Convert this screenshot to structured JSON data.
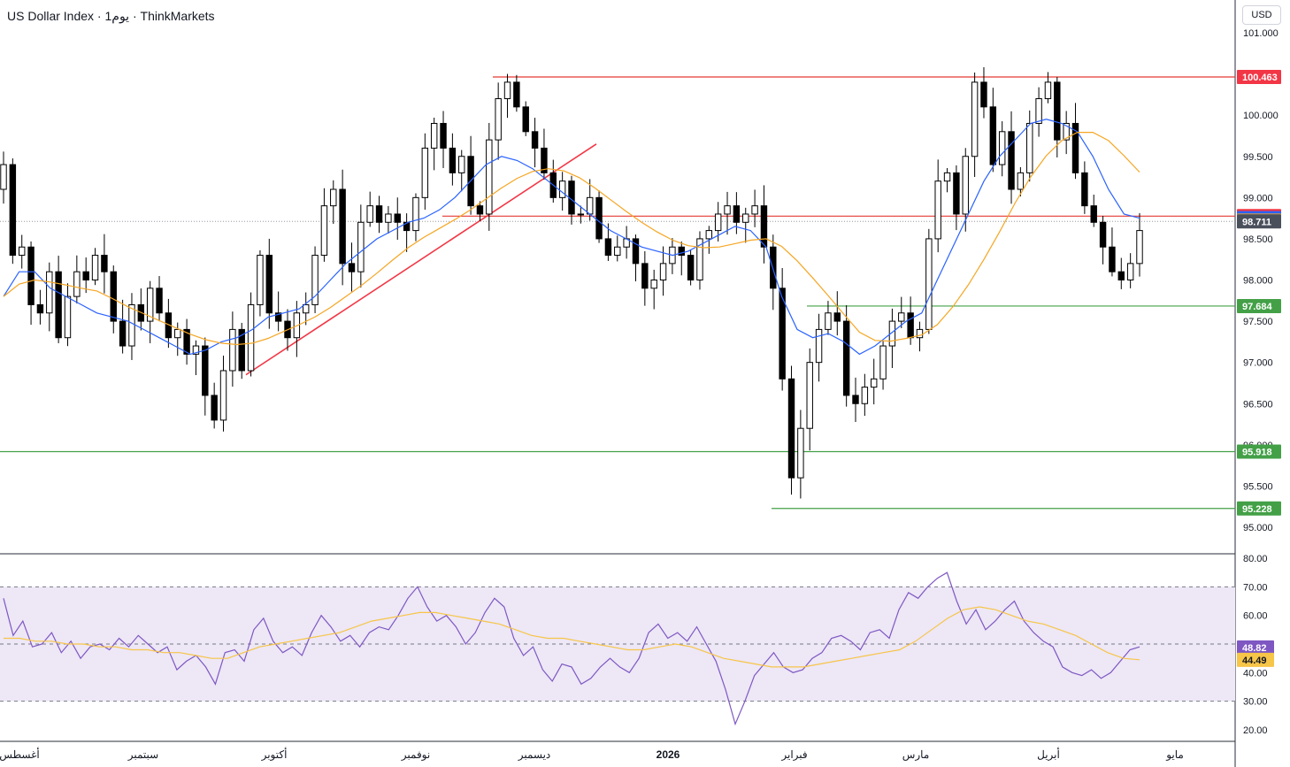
{
  "header": {
    "title": "US Dollar Index · 1يوم · ThinkMarkets",
    "currency": "USD"
  },
  "colors": {
    "up_candle": "#ffffff",
    "down_candle": "#000000",
    "candle_border": "#000000",
    "sma_fast": "#2962ff",
    "sma_slow": "#f5a623",
    "resistance": "#e53935",
    "support": "#43a047",
    "trendline": "#f23645",
    "rsi_line": "#7e57c2",
    "rsi_ma": "#f7c548",
    "rsi_band": "#ede7f6"
  },
  "chart_data": [
    {
      "type": "candlestick",
      "title": "US Dollar Index · 1يوم · ThinkMarkets",
      "ylim": [
        94.8,
        101.35
      ],
      "y_ticks": [
        "95.000",
        "95.500",
        "96.000",
        "96.500",
        "97.000",
        "97.500",
        "98.000",
        "98.500",
        "99.000",
        "99.500",
        "100.000",
        "101.000"
      ],
      "x_labels": [
        "أغسطس",
        "سبتمبر",
        "أكتوبر",
        "نوفمبر",
        "ديسمبر",
        "2026",
        "فبراير",
        "مارس",
        "أبريل",
        "مايو"
      ],
      "price_labels": [
        {
          "value": "100.463",
          "color": "#f23645"
        },
        {
          "value": "98.775",
          "color": "#f23645"
        },
        {
          "value": "98.750",
          "color": "#2962ff"
        },
        {
          "value": "98.720",
          "color": "#f5a623"
        },
        {
          "value": "98.711",
          "color": "#4a4f5c"
        },
        {
          "value": "97.684",
          "color": "#43a047"
        },
        {
          "value": "95.918",
          "color": "#43a047"
        },
        {
          "value": "95.228",
          "color": "#43a047"
        }
      ],
      "horizontal_levels": [
        {
          "value": 100.463,
          "kind": "resistance"
        },
        {
          "value": 98.775,
          "kind": "resistance"
        },
        {
          "value": 97.684,
          "kind": "support"
        },
        {
          "value": 95.918,
          "kind": "support"
        },
        {
          "value": 95.228,
          "kind": "support"
        }
      ],
      "trendline": {
        "from": 96.85,
        "to": 99.65
      },
      "close_series": [
        99.4,
        98.3,
        98.4,
        97.7,
        97.6,
        98.1,
        97.3,
        97.8,
        98.1,
        98.0,
        98.3,
        98.1,
        97.5,
        97.2,
        97.7,
        97.5,
        97.9,
        97.6,
        97.3,
        97.4,
        97.1,
        97.2,
        96.6,
        96.3,
        96.9,
        97.4,
        96.9,
        97.7,
        98.3,
        97.6,
        97.5,
        97.3,
        97.6,
        97.7,
        98.3,
        98.9,
        99.1,
        98.2,
        98.1,
        98.7,
        98.9,
        98.7,
        98.8,
        98.7,
        98.6,
        99.0,
        99.6,
        99.9,
        99.6,
        99.3,
        99.5,
        98.9,
        98.8,
        99.7,
        100.2,
        100.4,
        100.1,
        99.8,
        99.6,
        99.3,
        99.0,
        99.2,
        98.8,
        98.8,
        99.0,
        98.5,
        98.3,
        98.4,
        98.5,
        98.2,
        97.9,
        98.0,
        98.2,
        98.4,
        98.3,
        98.0,
        98.5,
        98.6,
        98.8,
        98.9,
        98.7,
        98.8,
        98.9,
        98.4,
        97.9,
        96.8,
        95.6,
        96.2,
        97.0,
        97.4,
        97.6,
        97.5,
        96.6,
        96.5,
        96.7,
        96.8,
        97.2,
        97.5,
        97.6,
        97.3,
        97.4,
        98.5,
        99.2,
        99.3,
        98.8,
        99.5,
        100.4,
        100.1,
        99.4,
        99.8,
        99.1,
        99.3,
        99.9,
        100.2,
        100.4,
        99.7,
        99.9,
        99.3,
        98.9,
        98.7,
        98.4,
        98.1,
        98.0,
        98.2,
        98.6
      ],
      "sma_fast_series": [
        97.8,
        98.1,
        98.1,
        97.9,
        97.8,
        97.7,
        97.6,
        97.55,
        97.5,
        97.4,
        97.3,
        97.2,
        97.1,
        97.15,
        97.25,
        97.3,
        97.4,
        97.55,
        97.6,
        97.65,
        97.8,
        98.0,
        98.2,
        98.35,
        98.5,
        98.6,
        98.7,
        98.75,
        98.85,
        99.0,
        99.2,
        99.4,
        99.5,
        99.45,
        99.35,
        99.2,
        99.05,
        98.9,
        98.75,
        98.6,
        98.5,
        98.4,
        98.35,
        98.3,
        98.35,
        98.45,
        98.55,
        98.65,
        98.6,
        98.4,
        97.8,
        97.4,
        97.3,
        97.35,
        97.25,
        97.1,
        97.2,
        97.35,
        97.5,
        97.6,
        98.0,
        98.4,
        98.8,
        99.2,
        99.5,
        99.7,
        99.9,
        99.95,
        99.9,
        99.8,
        99.5,
        99.1,
        98.8,
        98.75
      ]
    },
    {
      "type": "line",
      "title": "RSI",
      "ylim": [
        18,
        82
      ],
      "y_ticks": [
        "20.00",
        "30.00",
        "40.00",
        "50.00",
        "60.00",
        "70.00",
        "80.00"
      ],
      "band": [
        30,
        70
      ],
      "mid": 50,
      "value_labels": [
        {
          "value": "48.82",
          "color": "#7e57c2"
        },
        {
          "value": "44.49",
          "color": "#f7c548"
        }
      ],
      "series": [
        {
          "role": "rsi",
          "values": [
            66,
            53,
            58,
            49,
            50,
            54,
            47,
            51,
            45,
            49,
            50,
            48,
            52,
            49,
            53,
            50,
            47,
            49,
            41,
            44,
            46,
            42,
            36,
            47,
            48,
            44,
            55,
            59,
            51,
            47,
            49,
            46,
            54,
            60,
            56,
            51,
            53,
            49,
            54,
            56,
            55,
            60,
            66,
            70,
            63,
            58,
            60,
            56,
            50,
            54,
            61,
            66,
            63,
            52,
            46,
            49,
            41,
            37,
            43,
            42,
            36,
            38,
            42,
            45,
            42,
            40,
            45,
            54,
            57,
            52,
            54,
            51,
            56,
            50,
            44,
            34,
            22,
            30,
            39,
            43,
            47,
            42,
            40,
            41,
            45,
            47,
            52,
            53,
            51,
            48,
            54,
            55,
            52,
            62,
            68,
            66,
            70,
            73,
            75,
            65,
            57,
            62,
            55,
            58,
            62,
            65,
            58,
            54,
            51,
            49,
            42,
            40,
            39,
            41,
            38,
            40,
            44,
            48,
            49
          ]
        },
        {
          "role": "rsi_ma",
          "values": [
            52,
            52,
            51,
            51,
            50,
            50,
            49,
            49,
            48,
            48,
            47,
            47,
            46,
            45,
            45,
            47,
            49,
            50,
            51,
            52,
            53,
            54,
            56,
            58,
            59,
            60,
            61,
            61,
            60,
            59,
            58,
            57,
            55,
            53,
            52,
            52,
            51,
            50,
            49,
            48,
            48,
            49,
            50,
            49,
            47,
            45,
            44,
            43,
            42,
            42,
            42,
            43,
            44,
            45,
            46,
            47,
            48,
            51,
            55,
            59,
            62,
            63,
            62,
            60,
            58,
            57,
            55,
            53,
            50,
            47,
            45,
            44.49
          ]
        }
      ]
    }
  ]
}
